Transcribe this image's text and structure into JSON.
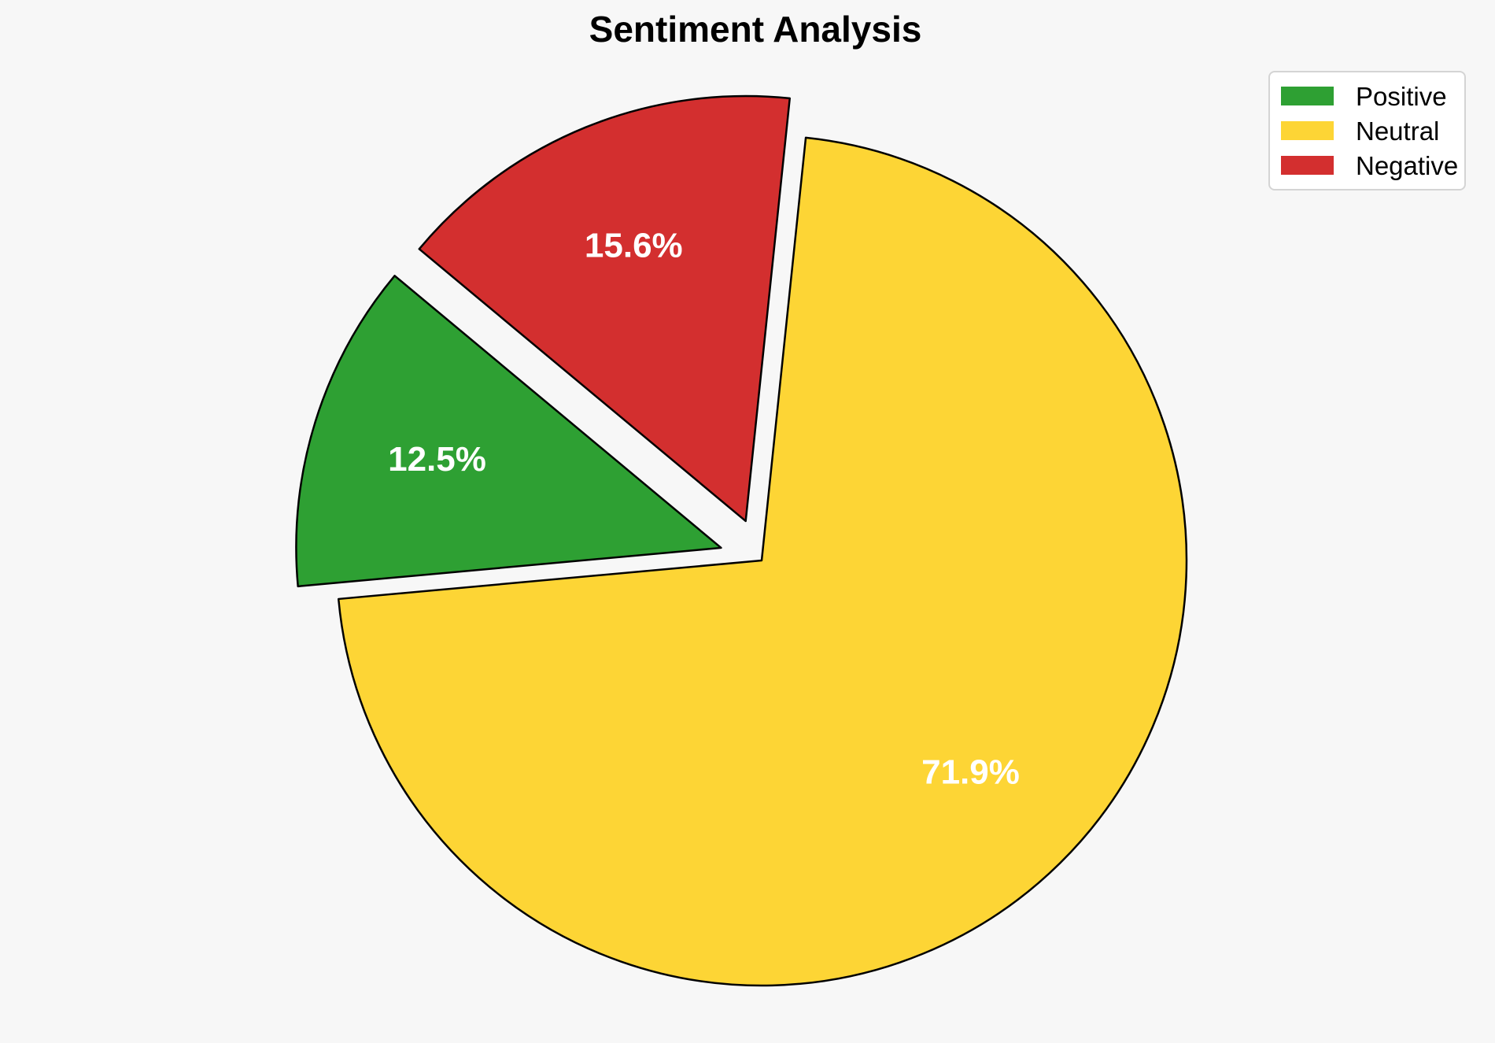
{
  "figure": {
    "background_color": "#f7f7f7"
  },
  "chart_data": {
    "type": "pie",
    "title": "Sentiment Analysis",
    "categories": [
      "Positive",
      "Neutral",
      "Negative"
    ],
    "values": [
      12.5,
      71.9,
      15.6
    ],
    "slices": [
      {
        "label": "Positive",
        "value": 12.5,
        "pct_label": "12.5%",
        "color": "#2ea033",
        "explode": 0.1
      },
      {
        "label": "Neutral",
        "value": 71.9,
        "pct_label": "71.9%",
        "color": "#fdd535",
        "explode": 0.0
      },
      {
        "label": "Negative",
        "value": 15.6,
        "pct_label": "15.6%",
        "color": "#d32f2f",
        "explode": 0.1
      }
    ],
    "start_angle_deg": 140.2,
    "direction": "counterclockwise",
    "edge_color": "#000000",
    "edge_width": 2.5,
    "pct_label_color": "#ffffff",
    "legend": {
      "position": "upper right",
      "entries": [
        "Positive",
        "Neutral",
        "Negative"
      ],
      "background": "#ffffff",
      "border_color": "#d4d4d4"
    }
  }
}
